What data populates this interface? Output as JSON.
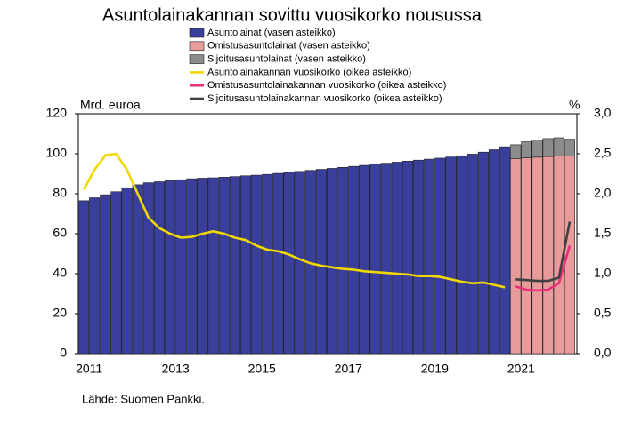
{
  "chart_data": {
    "type": "bar",
    "title": "Asuntolainakannan sovittu vuosikorko nousussa",
    "y_label": "Mrd. euroa",
    "y2_label": "%",
    "source": "Lähde: Suomen Pankki.",
    "categories": [
      "2011",
      null,
      null,
      null,
      null,
      null,
      null,
      null,
      "2013",
      null,
      null,
      null,
      null,
      null,
      null,
      null,
      "2015",
      null,
      null,
      null,
      null,
      null,
      null,
      null,
      "2017",
      null,
      null,
      null,
      null,
      null,
      null,
      null,
      "2019",
      null,
      null,
      null,
      null,
      null,
      null,
      null,
      "2021",
      null,
      null,
      null,
      null,
      null
    ],
    "series": [
      {
        "name": "Asuntolainat (vasen asteikko)",
        "type": "bar",
        "color": "#3b3f9c",
        "values": [
          76.5,
          78,
          79.5,
          81,
          83,
          84.5,
          85.5,
          86,
          86.5,
          87,
          87.5,
          87.8,
          88,
          88.3,
          88.6,
          89,
          89.3,
          89.7,
          90.2,
          90.7,
          91.2,
          91.7,
          92.2,
          92.7,
          93.2,
          93.7,
          94.2,
          94.8,
          95.3,
          95.8,
          96.3,
          96.8,
          97.3,
          97.8,
          98.4,
          99,
          99.8,
          100.8,
          102,
          103.5,
          null,
          null,
          null,
          null,
          null,
          null
        ]
      },
      {
        "name": "Omistusasuntolainat (vasen asteikko)",
        "type": "bar",
        "color": "#e89b9b",
        "values": [
          null,
          null,
          null,
          null,
          null,
          null,
          null,
          null,
          null,
          null,
          null,
          null,
          null,
          null,
          null,
          null,
          null,
          null,
          null,
          null,
          null,
          null,
          null,
          null,
          null,
          null,
          null,
          null,
          null,
          null,
          null,
          null,
          null,
          null,
          null,
          null,
          null,
          null,
          null,
          null,
          97.5,
          98,
          98.3,
          98.6,
          99,
          98.8
        ]
      },
      {
        "name": "Sijoitusasuntolainat (vasen asteikko)",
        "type": "bar",
        "color": "#8c8c8c",
        "values": [
          null,
          null,
          null,
          null,
          null,
          null,
          null,
          null,
          null,
          null,
          null,
          null,
          null,
          null,
          null,
          null,
          null,
          null,
          null,
          null,
          null,
          null,
          null,
          null,
          null,
          null,
          null,
          null,
          null,
          null,
          null,
          null,
          null,
          null,
          null,
          null,
          null,
          null,
          null,
          null,
          7,
          8,
          8.5,
          9,
          9,
          8.5
        ]
      },
      {
        "name": "Asuntolainakannan vuosikorko (oikea asteikko)",
        "type": "line",
        "axis": "y2",
        "color": "#f0d800",
        "values": [
          2.05,
          2.3,
          2.48,
          2.5,
          2.3,
          2.0,
          1.7,
          1.57,
          1.5,
          1.45,
          1.46,
          1.5,
          1.53,
          1.5,
          1.45,
          1.42,
          1.35,
          1.3,
          1.28,
          1.24,
          1.18,
          1.13,
          1.1,
          1.08,
          1.06,
          1.05,
          1.03,
          1.02,
          1.01,
          1.0,
          0.99,
          0.97,
          0.97,
          0.96,
          0.93,
          0.9,
          0.88,
          0.89,
          0.86,
          0.83,
          null,
          null,
          null,
          null,
          null,
          null
        ]
      },
      {
        "name": "Omistusasuntolainakannan vuosikorko (oikea asteikko)",
        "type": "line",
        "axis": "y2",
        "color": "#e8307a",
        "values": [
          null,
          null,
          null,
          null,
          null,
          null,
          null,
          null,
          null,
          null,
          null,
          null,
          null,
          null,
          null,
          null,
          null,
          null,
          null,
          null,
          null,
          null,
          null,
          null,
          null,
          null,
          null,
          null,
          null,
          null,
          null,
          null,
          null,
          null,
          null,
          null,
          null,
          null,
          null,
          null,
          0.84,
          0.8,
          0.79,
          0.8,
          0.88,
          1.35
        ]
      },
      {
        "name": "Sijoitusasuntolainakannan vuosikorko (oikea asteikko)",
        "type": "line",
        "axis": "y2",
        "color": "#404040",
        "values": [
          null,
          null,
          null,
          null,
          null,
          null,
          null,
          null,
          null,
          null,
          null,
          null,
          null,
          null,
          null,
          null,
          null,
          null,
          null,
          null,
          null,
          null,
          null,
          null,
          null,
          null,
          null,
          null,
          null,
          null,
          null,
          null,
          null,
          null,
          null,
          null,
          null,
          null,
          null,
          null,
          0.93,
          0.92,
          0.91,
          0.91,
          0.95,
          1.65
        ]
      }
    ],
    "ylim": [
      0,
      120
    ],
    "yticks": [
      0,
      20,
      40,
      60,
      80,
      100,
      120
    ],
    "y2lim": [
      0,
      3
    ],
    "y2ticks": [
      {
        "value": 0,
        "label": "0,0"
      },
      {
        "value": 0.5,
        "label": "0,5"
      },
      {
        "value": 1,
        "label": "1,0"
      },
      {
        "value": 1.5,
        "label": "1,5"
      },
      {
        "value": 2,
        "label": "2,0"
      },
      {
        "value": 2.5,
        "label": "2,5"
      },
      {
        "value": 3,
        "label": "3,0"
      }
    ],
    "stacked": true
  }
}
